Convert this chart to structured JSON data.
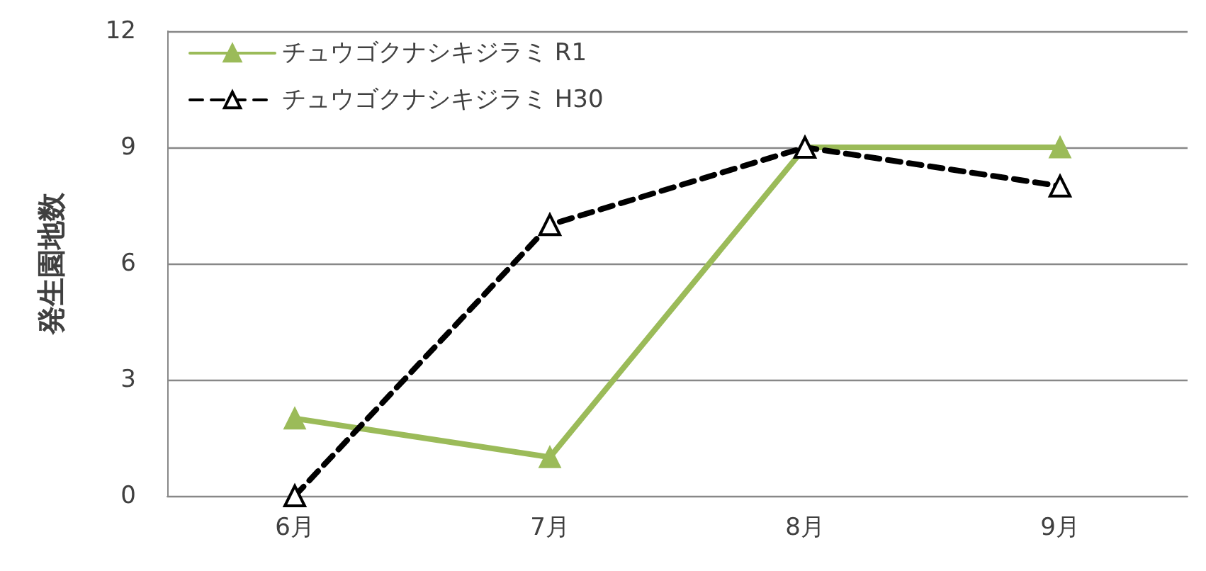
{
  "chart_data": {
    "type": "line",
    "ylabel": "発生園地数",
    "categories": [
      "6月",
      "7月",
      "8月",
      "9月"
    ],
    "series": [
      {
        "name": "チュウゴクナシキジラミ R1",
        "color": "#9bbb59",
        "values": [
          2,
          1,
          9,
          9
        ],
        "line_style": "solid"
      },
      {
        "name": "チュウゴクナシキジラミ H30",
        "color": "#000000",
        "values": [
          0,
          7,
          9,
          8
        ],
        "line_style": "dashed"
      }
    ],
    "ylim": [
      0,
      12
    ],
    "yticks": [
      0,
      3,
      6,
      9,
      12
    ],
    "grid": "y",
    "legend": "top left",
    "marker": "triangle"
  }
}
